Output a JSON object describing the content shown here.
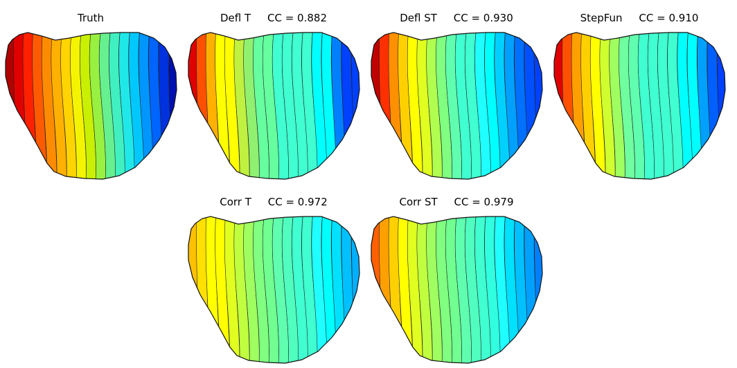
{
  "panels": [
    {
      "id": "truth",
      "title": "Truth",
      "colors": [
        "#b00000",
        "#e00000",
        "#ff2000",
        "#ff5a00",
        "#ff8c00",
        "#ffb000",
        "#ffd400",
        "#f4f400",
        "#c8f000",
        "#98f040",
        "#66f090",
        "#40f0c0",
        "#20e8e8",
        "#00c8ff",
        "#0096ff",
        "#0064ff",
        "#0032e0",
        "#0010b0"
      ]
    },
    {
      "id": "defl-t",
      "title": "Defl T     CC = 0.882",
      "colors": [
        "#e00000",
        "#ff5000",
        "#ffb000",
        "#ffff00",
        "#ffff00",
        "#c0f040",
        "#90f070",
        "#66ffa0",
        "#66ffa0",
        "#40ffd0",
        "#40ffd0",
        "#40ffd0",
        "#40ffd0",
        "#00ffff",
        "#00ffff",
        "#0080ff",
        "#0040ff",
        "#0040ff"
      ]
    },
    {
      "id": "defl-st",
      "title": "Defl ST     CC = 0.930",
      "colors": [
        "#c00000",
        "#ff3000",
        "#ff9000",
        "#ffd000",
        "#ffff00",
        "#e0ff20",
        "#b0ff50",
        "#80ff80",
        "#60ffb0",
        "#40ffd0",
        "#40ffd0",
        "#20ffff",
        "#00ffff",
        "#00d0ff",
        "#00a0ff",
        "#0070ff",
        "#0050ff",
        "#0040ff"
      ]
    },
    {
      "id": "stepfun",
      "title": "StepFun     CC = 0.910",
      "colors": [
        "#e00000",
        "#ff5000",
        "#ffa000",
        "#ffd000",
        "#ffff00",
        "#d0ff30",
        "#a0ff60",
        "#70ffa0",
        "#60ffb0",
        "#40ffd0",
        "#40ffd0",
        "#40ffd0",
        "#40ffd0",
        "#00ffff",
        "#00ffff",
        "#00a0ff",
        "#0060ff",
        "#0040ff"
      ]
    },
    {
      "id": "corr-t",
      "title": "Corr T     CC = 0.972",
      "colors": [
        "#ffc000",
        "#ffe000",
        "#ffff00",
        "#ffff00",
        "#e0ff20",
        "#c0ff40",
        "#a0ff60",
        "#80ff80",
        "#70ff90",
        "#60ffb0",
        "#50ffc0",
        "#40ffd0",
        "#40ffd0",
        "#20ffff",
        "#00ffff",
        "#00e0ff",
        "#00c0ff",
        "#00b0ff"
      ]
    },
    {
      "id": "corr-st",
      "title": "Corr ST     CC = 0.979",
      "colors": [
        "#ff6000",
        "#ffa000",
        "#ffd000",
        "#ffff00",
        "#e0ff20",
        "#c0ff40",
        "#a0ff60",
        "#80ff80",
        "#70ff90",
        "#60ffb0",
        "#50ffc0",
        "#40ffd0",
        "#30ffe0",
        "#20ffff",
        "#00e0ff",
        "#00c0ff",
        "#00a0ff",
        "#0080ff"
      ]
    }
  ]
}
